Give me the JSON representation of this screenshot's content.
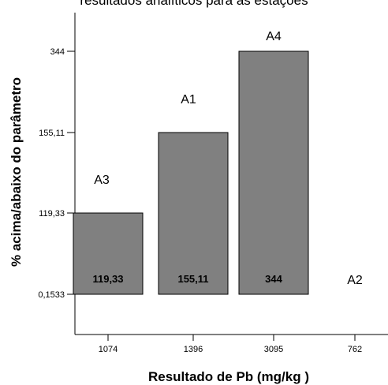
{
  "caption": "resultados analíticos para as estações",
  "chart_data": {
    "type": "bar",
    "title": "",
    "xlabel": "Resultado de Pb (mg/kg )",
    "ylabel": "% acima/abaixo do parâmetro",
    "categories": [
      "1074",
      "1396",
      "3095",
      "762"
    ],
    "yticks": [
      {
        "label": "0,1533",
        "value": 0.1533
      },
      {
        "label": "119,33",
        "value": 119.33
      },
      {
        "label": "155,11",
        "value": 155.11
      },
      {
        "label": "344",
        "value": 344
      }
    ],
    "series": [
      {
        "values": [
          119.33,
          155.11,
          344,
          0.1533
        ],
        "value_labels": [
          "119,33",
          "155,11",
          "344",
          ""
        ],
        "point_labels": [
          "A3",
          "A1",
          "A4",
          "A2"
        ]
      }
    ],
    "bar_color": "#808080",
    "grid": false,
    "legend": "none"
  }
}
